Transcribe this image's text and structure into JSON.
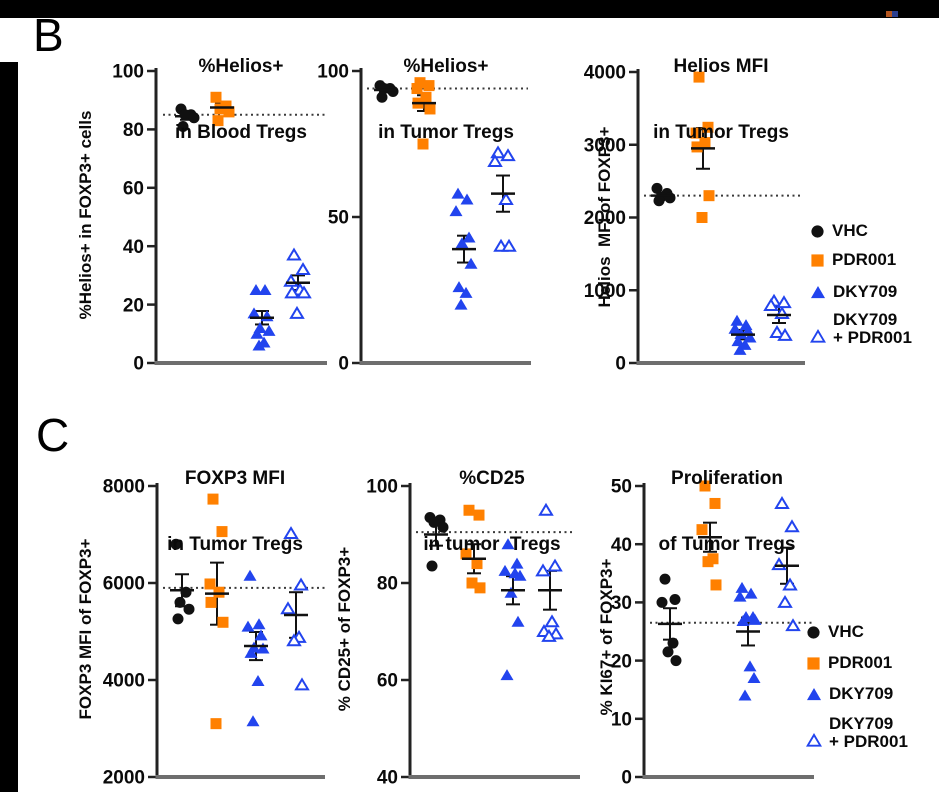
{
  "panels": {
    "b_label": "B",
    "c_label": "C"
  },
  "colors": {
    "orange": "#FF8000",
    "blue": "#2244EE",
    "black": "#111111",
    "axis": "#222222",
    "baseline": "#6e6e6e",
    "refline": "#3a3a3a"
  },
  "legend": {
    "items": [
      {
        "label": "VHC",
        "marker": "circle-filled",
        "color": "#111111"
      },
      {
        "label": "PDR001",
        "marker": "square-filled",
        "color": "#FF8000"
      },
      {
        "label": "DKY709",
        "marker": "triangle-filled",
        "color": "#2244EE"
      },
      {
        "label_line1": "DKY709",
        "label_line2": "+ PDR001",
        "marker": "triangle-open",
        "color": "#2244EE"
      }
    ]
  },
  "chart_data": [
    {
      "id": "helios_blood",
      "type": "scatter",
      "title1": "%Helios+",
      "title2": "in Blood Tregs",
      "ylabel": "%Helios+ in FOXP3+ cells",
      "ylim": [
        0,
        100
      ],
      "yticks": [
        0,
        20,
        40,
        60,
        80,
        100
      ],
      "refline": 85,
      "groups": [
        {
          "name": "VHC",
          "marker": "circle-filled",
          "color": "#111111",
          "values": [
            87,
            85,
            85,
            84,
            81
          ],
          "mean": 84.5,
          "sem": 1.2
        },
        {
          "name": "PDR001",
          "marker": "square-filled",
          "color": "#FF8000",
          "values": [
            91,
            88,
            87,
            86,
            83
          ],
          "mean": 87.5,
          "sem": 1.5
        },
        {
          "name": "DKY709",
          "marker": "triangle-filled",
          "color": "#2244EE",
          "values": [
            25,
            25,
            17,
            16,
            12,
            11,
            10,
            7,
            6
          ],
          "mean": 15.5,
          "sem": 2.3
        },
        {
          "name": "DKY709 + PDR001",
          "marker": "triangle-open",
          "color": "#2244EE",
          "values": [
            37,
            32,
            28,
            25,
            24,
            24,
            17
          ],
          "mean": 27.5,
          "sem": 2.5
        }
      ]
    },
    {
      "id": "helios_tumor",
      "type": "scatter",
      "title1": "%Helios+",
      "title2": "in Tumor Tregs",
      "ylabel": "",
      "ylim": [
        0,
        100
      ],
      "yticks": [
        0,
        50,
        100
      ],
      "refline": 94,
      "groups": [
        {
          "name": "VHC",
          "marker": "circle-filled",
          "color": "#111111",
          "values": [
            95,
            94,
            94,
            93,
            91
          ],
          "mean": 93.5,
          "sem": 0.8
        },
        {
          "name": "PDR001",
          "marker": "square-filled",
          "color": "#FF8000",
          "values": [
            96,
            95,
            94,
            91,
            89,
            87,
            75
          ],
          "mean": 89,
          "sem": 2.7
        },
        {
          "name": "DKY709",
          "marker": "triangle-filled",
          "color": "#2244EE",
          "values": [
            58,
            56,
            52,
            43,
            41,
            34,
            26,
            24,
            20
          ],
          "mean": 39,
          "sem": 4.6
        },
        {
          "name": "DKY709 + PDR001",
          "marker": "triangle-open",
          "color": "#2244EE",
          "values": [
            72,
            71,
            69,
            56,
            40,
            40
          ],
          "mean": 58,
          "sem": 6.2
        }
      ]
    },
    {
      "id": "helios_mfi_tumor",
      "type": "scatter",
      "title1": "Helios MFI",
      "title2": "in Tumor Tregs",
      "ylabel": "Helios  MFI of FOXP3+",
      "ylim": [
        0,
        4000
      ],
      "yticks": [
        0,
        1000,
        2000,
        3000,
        4000
      ],
      "refline": 2300,
      "groups": [
        {
          "name": "VHC",
          "marker": "circle-filled",
          "color": "#111111",
          "values": [
            2400,
            2330,
            2280,
            2270,
            2230
          ],
          "mean": 2300,
          "sem": 40
        },
        {
          "name": "PDR001",
          "marker": "square-filled",
          "color": "#FF8000",
          "values": [
            3930,
            3240,
            3160,
            3030,
            2970,
            2300,
            2000
          ],
          "mean": 2950,
          "sem": 280
        },
        {
          "name": "DKY709",
          "marker": "triangle-filled",
          "color": "#2244EE",
          "values": [
            580,
            520,
            470,
            440,
            400,
            350,
            300,
            250,
            180
          ],
          "mean": 390,
          "sem": 65
        },
        {
          "name": "DKY709 + PDR001",
          "marker": "triangle-open",
          "color": "#2244EE",
          "values": [
            850,
            830,
            790,
            680,
            420,
            380
          ],
          "mean": 660,
          "sem": 110
        }
      ]
    },
    {
      "id": "foxp3_mfi_tumor",
      "type": "scatter",
      "title1": "FOXP3 MFI",
      "title2": "in Tumor Tregs",
      "ylabel": "FOXP3 MFI of FOXP3+",
      "ylim": [
        2000,
        8000
      ],
      "yticks": [
        2000,
        4000,
        6000,
        8000
      ],
      "refline": 5900,
      "groups": [
        {
          "name": "VHC",
          "marker": "circle-filled",
          "color": "#111111",
          "values": [
            6800,
            5810,
            5600,
            5460,
            5260
          ],
          "mean": 5850,
          "sem": 330
        },
        {
          "name": "PDR001",
          "marker": "square-filled",
          "color": "#FF8000",
          "values": [
            7730,
            7060,
            5980,
            5810,
            5600,
            5190,
            3100
          ],
          "mean": 5780,
          "sem": 640
        },
        {
          "name": "DKY709",
          "marker": "triangle-filled",
          "color": "#2244EE",
          "values": [
            6150,
            5150,
            5100,
            4920,
            4670,
            4650,
            4560,
            3980,
            3150
          ],
          "mean": 4700,
          "sem": 290
        },
        {
          "name": "DKY709 + PDR001",
          "marker": "triangle-open",
          "color": "#2244EE",
          "values": [
            7020,
            5960,
            5470,
            4880,
            4810,
            3900
          ],
          "mean": 5340,
          "sem": 470
        }
      ]
    },
    {
      "id": "cd25_tumor",
      "type": "scatter",
      "title1": "%CD25",
      "title2": "in tumor  Tregs",
      "ylabel": "% CD25+ of FOXP3+",
      "ylim": [
        40,
        100
      ],
      "yticks": [
        40,
        60,
        80,
        100
      ],
      "refline": 90.5,
      "groups": [
        {
          "name": "VHC",
          "marker": "circle-filled",
          "color": "#111111",
          "values": [
            93.5,
            93,
            92.5,
            91.5,
            83.5
          ],
          "mean": 90,
          "sem": 2.3
        },
        {
          "name": "PDR001",
          "marker": "square-filled",
          "color": "#FF8000",
          "values": [
            95,
            94,
            86,
            84,
            80,
            79
          ],
          "mean": 85,
          "sem": 3.0
        },
        {
          "name": "DKY709",
          "marker": "triangle-filled",
          "color": "#2244EE",
          "values": [
            88,
            84,
            82.5,
            82,
            81.5,
            78,
            72,
            61
          ],
          "mean": 78.5,
          "sem": 2.9
        },
        {
          "name": "DKY709 + PDR001",
          "marker": "triangle-open",
          "color": "#2244EE",
          "values": [
            95,
            83.5,
            82.5,
            72,
            70,
            69.5,
            69
          ],
          "mean": 78.5,
          "sem": 4.0
        }
      ]
    },
    {
      "id": "proliferation_tumor",
      "type": "scatter",
      "title1": "Proliferation",
      "title2": "of Tumor Tregs",
      "ylabel": "% KI67+ of FOXP3+",
      "ylim": [
        0,
        50
      ],
      "yticks": [
        0,
        10,
        20,
        30,
        40,
        50
      ],
      "refline": 26.5,
      "groups": [
        {
          "name": "VHC",
          "marker": "circle-filled",
          "color": "#111111",
          "values": [
            34,
            30.5,
            30,
            23,
            21.5,
            20
          ],
          "mean": 26.3,
          "sem": 2.7
        },
        {
          "name": "PDR001",
          "marker": "square-filled",
          "color": "#FF8000",
          "values": [
            50,
            47,
            42.5,
            37.5,
            37,
            33
          ],
          "mean": 41.2,
          "sem": 2.5
        },
        {
          "name": "DKY709",
          "marker": "triangle-filled",
          "color": "#2244EE",
          "values": [
            32.5,
            31.5,
            31,
            27.5,
            27.5,
            27,
            26.8,
            19,
            17,
            14
          ],
          "mean": 25,
          "sem": 2.4
        },
        {
          "name": "DKY709 + PDR001",
          "marker": "triangle-open",
          "color": "#2244EE",
          "values": [
            47,
            43,
            36.5,
            33,
            30,
            26
          ],
          "mean": 36.3,
          "sem": 3.1
        }
      ]
    }
  ]
}
